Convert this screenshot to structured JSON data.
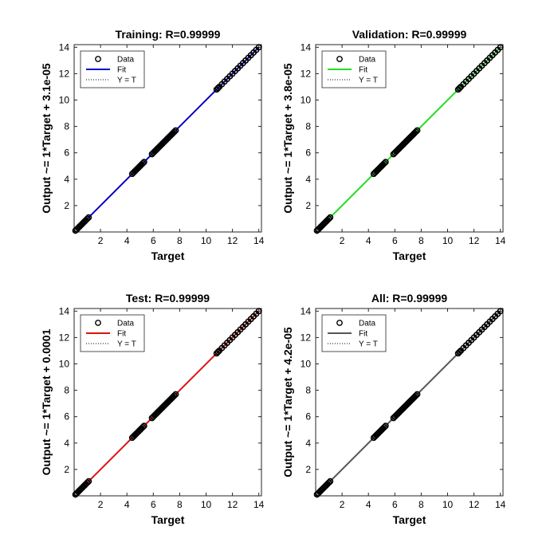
{
  "chart_data": [
    {
      "type": "scatter",
      "title": "Training: R=0.99999",
      "xlabel": "Target",
      "ylabel": "Output ~= 1*Target + 3.1e-05",
      "xlim": [
        0,
        14.2
      ],
      "ylim": [
        0,
        14.2
      ],
      "ticks": [
        2,
        4,
        6,
        8,
        10,
        12,
        14
      ],
      "fit_color": "#0000CC",
      "legend": {
        "position": "top-left",
        "entries": [
          "Data",
          "Fit",
          "Y = T"
        ]
      },
      "series": [
        {
          "name": "Data",
          "kind": "points",
          "x": [
            0.1,
            0.2,
            0.3,
            0.4,
            0.5,
            0.6,
            0.7,
            0.8,
            0.9,
            1.0,
            1.1,
            4.4,
            4.5,
            4.6,
            4.7,
            4.8,
            4.9,
            5.0,
            5.1,
            5.2,
            5.3,
            5.9,
            6.0,
            6.1,
            6.2,
            6.3,
            6.4,
            6.5,
            6.6,
            6.7,
            6.8,
            6.9,
            7.0,
            7.1,
            7.2,
            7.3,
            7.4,
            7.5,
            7.6,
            7.7,
            10.8,
            10.9,
            11.0,
            11.2,
            11.4,
            11.6,
            11.8,
            12.0,
            12.2,
            12.4,
            12.6,
            12.8,
            13.0,
            13.2,
            13.4,
            13.6,
            13.8,
            14.0
          ]
        },
        {
          "name": "Fit",
          "kind": "line",
          "x": [
            1.0,
            14.0
          ],
          "y": [
            1.0,
            14.0
          ]
        },
        {
          "name": "Y = T",
          "kind": "dotted-line",
          "x": [
            0,
            14.2
          ],
          "y": [
            0,
            14.2
          ]
        }
      ]
    },
    {
      "type": "scatter",
      "title": "Validation: R=0.99999",
      "xlabel": "Target",
      "ylabel": "Output ~= 1*Target + 3.8e-05",
      "xlim": [
        0,
        14.2
      ],
      "ylim": [
        0,
        14.2
      ],
      "ticks": [
        2,
        4,
        6,
        8,
        10,
        12,
        14
      ],
      "fit_color": "#22DD22",
      "legend": {
        "position": "top-left",
        "entries": [
          "Data",
          "Fit",
          "Y = T"
        ]
      },
      "series": [
        {
          "name": "Data",
          "kind": "points",
          "x": [
            0.1,
            0.2,
            0.3,
            0.4,
            0.5,
            0.6,
            0.7,
            0.8,
            0.9,
            1.0,
            1.1,
            4.4,
            4.5,
            4.6,
            4.7,
            4.8,
            4.9,
            5.0,
            5.1,
            5.2,
            5.3,
            5.9,
            6.0,
            6.1,
            6.2,
            6.3,
            6.4,
            6.5,
            6.6,
            6.7,
            6.8,
            6.9,
            7.0,
            7.1,
            7.2,
            7.3,
            7.4,
            7.5,
            7.6,
            7.7,
            10.8,
            10.9,
            11.0,
            11.2,
            11.4,
            11.6,
            11.8,
            12.0,
            12.2,
            12.4,
            12.6,
            12.8,
            13.0,
            13.2,
            13.4,
            13.6,
            13.8,
            14.0
          ]
        },
        {
          "name": "Fit",
          "kind": "line",
          "x": [
            1.0,
            14.0
          ],
          "y": [
            1.0,
            14.0
          ]
        },
        {
          "name": "Y = T",
          "kind": "dotted-line",
          "x": [
            0,
            14.2
          ],
          "y": [
            0,
            14.2
          ]
        }
      ]
    },
    {
      "type": "scatter",
      "title": "Test: R=0.99999",
      "xlabel": "Target",
      "ylabel": "Output ~= 1*Target + 0.0001",
      "xlim": [
        0,
        14.2
      ],
      "ylim": [
        0,
        14.2
      ],
      "ticks": [
        2,
        4,
        6,
        8,
        10,
        12,
        14
      ],
      "fit_color": "#DD1111",
      "legend": {
        "position": "top-left",
        "entries": [
          "Data",
          "Fit",
          "Y = T"
        ]
      },
      "series": [
        {
          "name": "Data",
          "kind": "points",
          "x": [
            0.1,
            0.2,
            0.3,
            0.4,
            0.5,
            0.6,
            0.7,
            0.8,
            0.9,
            1.0,
            1.1,
            4.4,
            4.5,
            4.6,
            4.7,
            4.8,
            4.9,
            5.0,
            5.1,
            5.2,
            5.3,
            5.9,
            6.0,
            6.1,
            6.2,
            6.3,
            6.4,
            6.5,
            6.6,
            6.7,
            6.8,
            6.9,
            7.0,
            7.1,
            7.2,
            7.3,
            7.4,
            7.5,
            7.6,
            7.7,
            10.8,
            10.9,
            11.0,
            11.2,
            11.4,
            11.6,
            11.8,
            12.0,
            12.2,
            12.4,
            12.6,
            12.8,
            13.0,
            13.2,
            13.4,
            13.6,
            13.8,
            14.0
          ]
        },
        {
          "name": "Fit",
          "kind": "line",
          "x": [
            1.0,
            14.0
          ],
          "y": [
            1.0,
            14.0
          ]
        },
        {
          "name": "Y = T",
          "kind": "dotted-line",
          "x": [
            0,
            14.2
          ],
          "y": [
            0,
            14.2
          ]
        }
      ]
    },
    {
      "type": "scatter",
      "title": "All: R=0.99999",
      "xlabel": "Target",
      "ylabel": "Output ~= 1*Target + 4.2e-05",
      "xlim": [
        0,
        14.2
      ],
      "ylim": [
        0,
        14.2
      ],
      "ticks": [
        2,
        4,
        6,
        8,
        10,
        12,
        14
      ],
      "fit_color": "#555555",
      "legend": {
        "position": "top-left",
        "entries": [
          "Data",
          "Fit",
          "Y = T"
        ]
      },
      "series": [
        {
          "name": "Data",
          "kind": "points",
          "x": [
            0.1,
            0.2,
            0.3,
            0.4,
            0.5,
            0.6,
            0.7,
            0.8,
            0.9,
            1.0,
            1.1,
            4.4,
            4.5,
            4.6,
            4.7,
            4.8,
            4.9,
            5.0,
            5.1,
            5.2,
            5.3,
            5.9,
            6.0,
            6.1,
            6.2,
            6.3,
            6.4,
            6.5,
            6.6,
            6.7,
            6.8,
            6.9,
            7.0,
            7.1,
            7.2,
            7.3,
            7.4,
            7.5,
            7.6,
            7.7,
            10.8,
            10.9,
            11.0,
            11.2,
            11.4,
            11.6,
            11.8,
            12.0,
            12.2,
            12.4,
            12.6,
            12.8,
            13.0,
            13.2,
            13.4,
            13.6,
            13.8,
            14.0
          ]
        },
        {
          "name": "Fit",
          "kind": "line",
          "x": [
            1.0,
            14.0
          ],
          "y": [
            1.0,
            14.0
          ]
        },
        {
          "name": "Y = T",
          "kind": "dotted-line",
          "x": [
            0,
            14.2
          ],
          "y": [
            0,
            14.2
          ]
        }
      ]
    }
  ]
}
